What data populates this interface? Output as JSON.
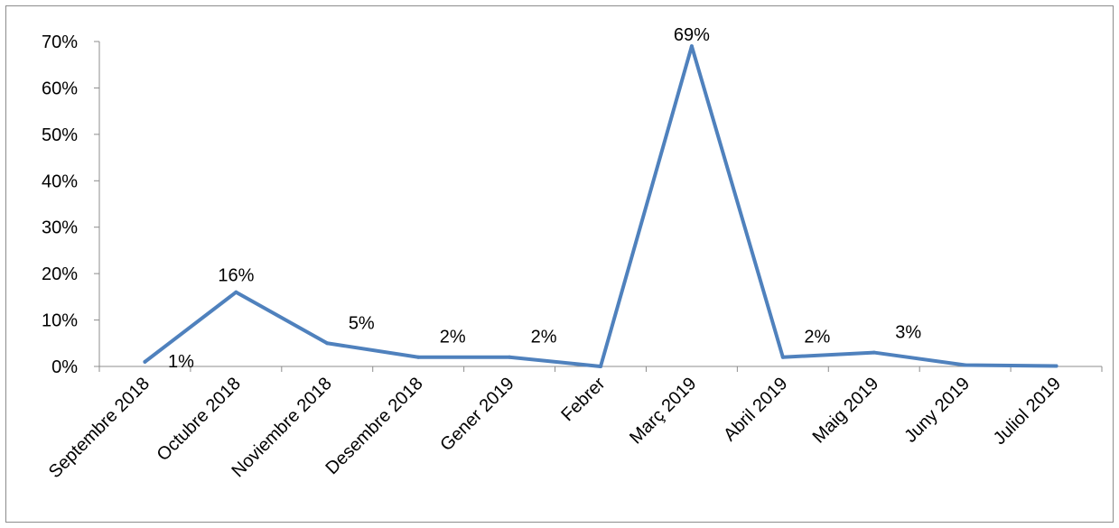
{
  "chart_data": {
    "type": "line",
    "categories": [
      "Septembre 2018",
      "Octubre 2018",
      "Noviembre 2018",
      "Desembre 2018",
      "Gener 2019",
      "Febrer",
      "Març 2019",
      "Abril 2019",
      "Maig 2019",
      "Juny 2019",
      "Juliol 2019"
    ],
    "series": [
      {
        "values": [
          1,
          16,
          5,
          2,
          2,
          0,
          69,
          2,
          3,
          0.3,
          0.1
        ],
        "data_labels": [
          "1%",
          "16%",
          "5%",
          "2%",
          "2%",
          "",
          "69%",
          "2%",
          "3%",
          "",
          ""
        ],
        "color": "#4f81bd"
      }
    ],
    "y_ticks": [
      0,
      10,
      20,
      30,
      40,
      50,
      60,
      70
    ],
    "y_tick_labels": [
      "0%",
      "10%",
      "20%",
      "30%",
      "40%",
      "50%",
      "60%",
      "70%"
    ],
    "ylim": [
      0,
      70
    ],
    "grid": false,
    "legend": "none"
  }
}
